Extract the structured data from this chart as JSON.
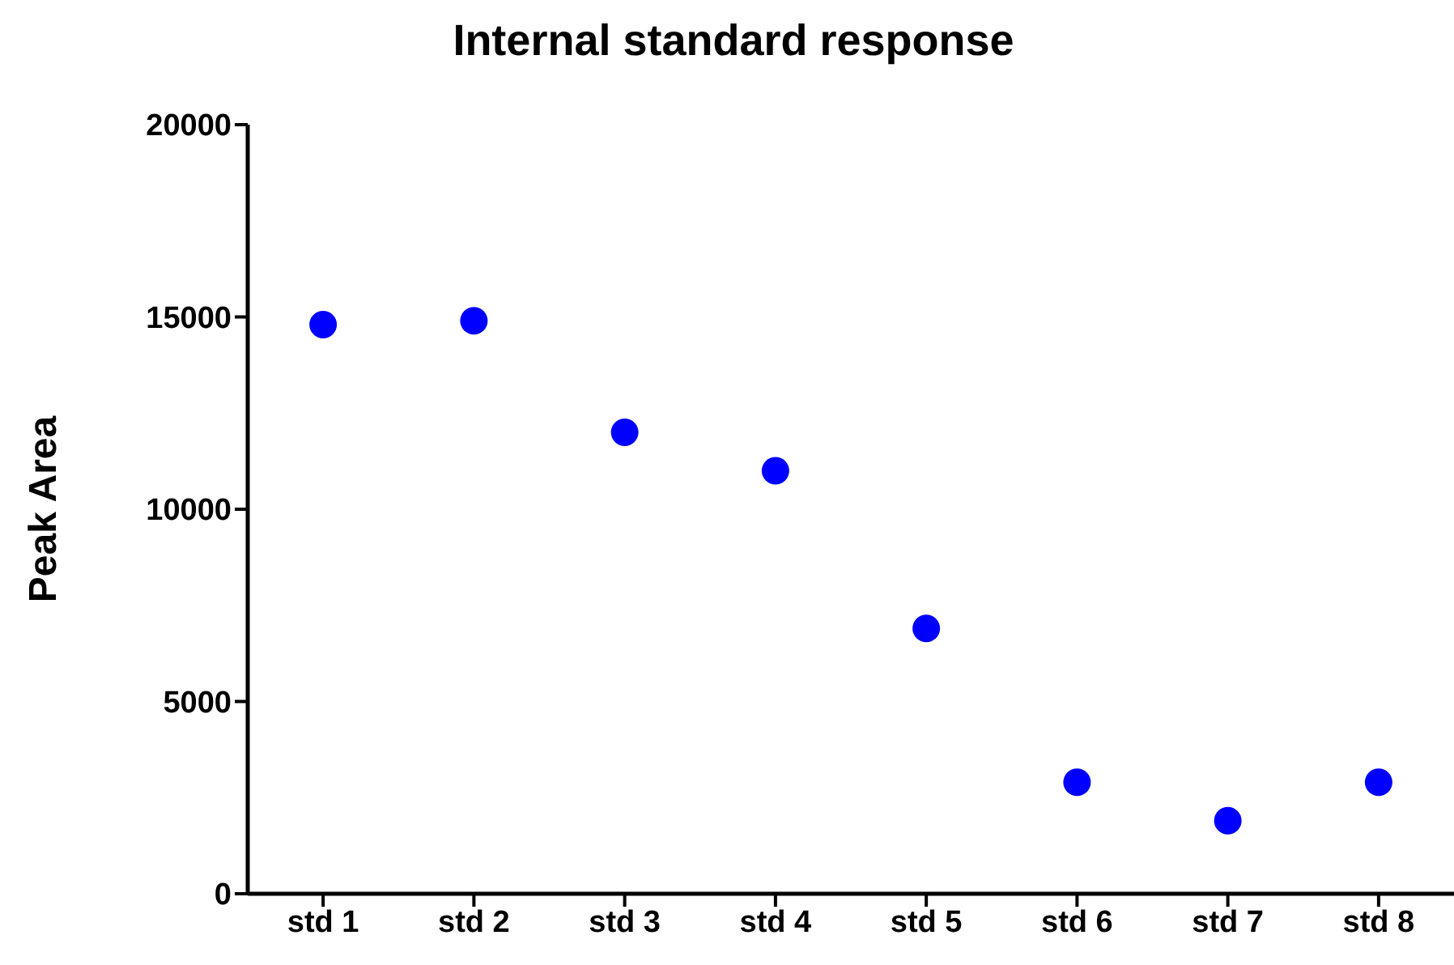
{
  "chart_data": {
    "type": "scatter",
    "title": "Internal standard response",
    "ylabel": "Peak Area",
    "categories": [
      "std 1",
      "std 2",
      "std 3",
      "std 4",
      "std 5",
      "std 6",
      "std 7",
      "std 8"
    ],
    "series": [
      {
        "color": "#0000ff",
        "values": [
          14800,
          14900,
          12000,
          11000,
          6900,
          2900,
          1900,
          2900
        ]
      }
    ],
    "ylim": [
      0,
      20000
    ],
    "yticks": [
      0,
      5000,
      10000,
      15000,
      20000
    ],
    "grid": false,
    "legend": false,
    "marker": "circle"
  }
}
